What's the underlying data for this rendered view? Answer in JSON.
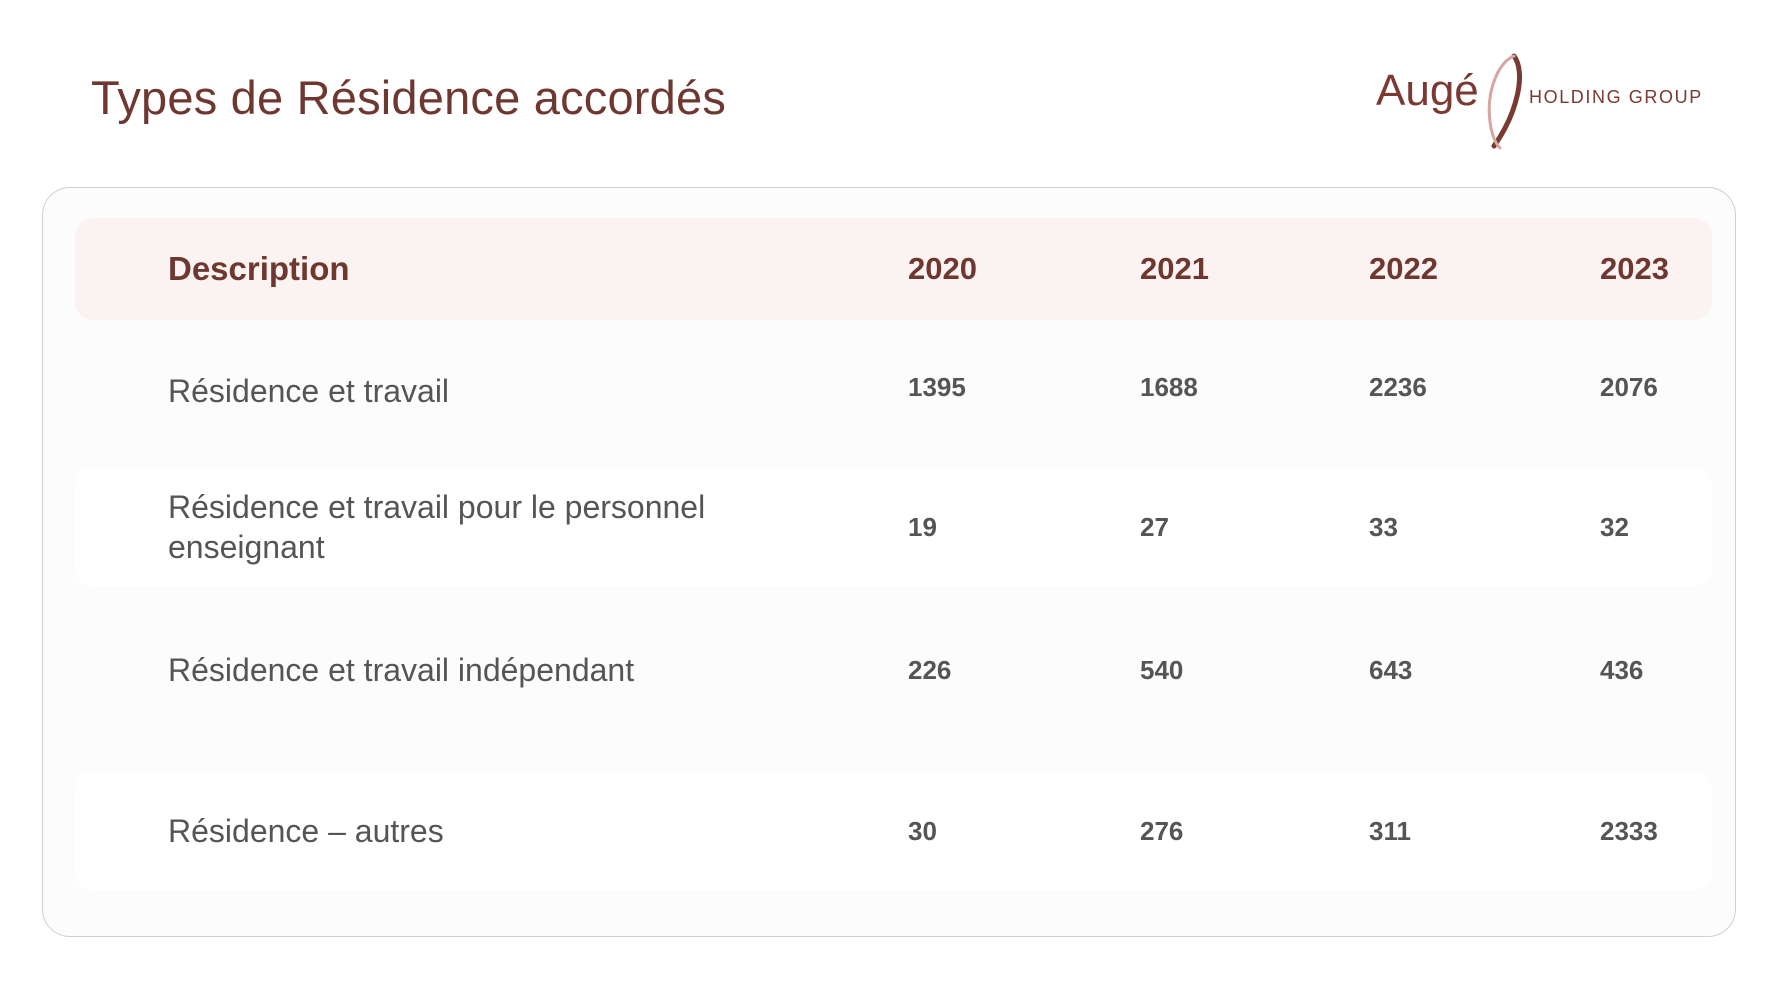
{
  "title": "Types de Résidence accordés",
  "logo": {
    "brand": "Augé",
    "subtitle": "HOLDING GROUP"
  },
  "table": {
    "headers": [
      "Description",
      "2020",
      "2021",
      "2022",
      "2023"
    ],
    "rows": [
      {
        "description": "Résidence et travail",
        "values": [
          "1395",
          "1688",
          "2236",
          "2076"
        ]
      },
      {
        "description": "Résidence et travail pour le personnel enseignant",
        "values": [
          "19",
          "27",
          "33",
          "32"
        ]
      },
      {
        "description": "Résidence et travail indépendant",
        "values": [
          "226",
          "540",
          "643",
          "436"
        ]
      },
      {
        "description": "Résidence – autres",
        "values": [
          "30",
          "276",
          "311",
          "2333"
        ]
      }
    ]
  },
  "colors": {
    "accent": "#6e3830",
    "header_bg": "#fbf3f2",
    "text": "#555555"
  }
}
